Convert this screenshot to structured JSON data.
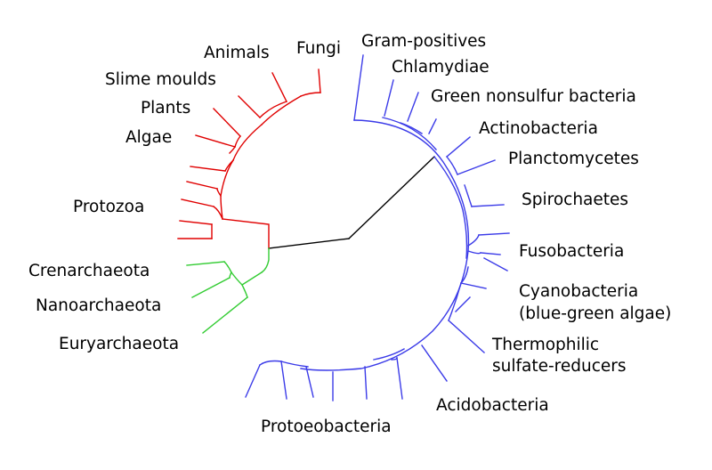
{
  "colors": {
    "eukaryota": "#e00000",
    "archaea": "#33cc33",
    "bacteria": "#3b3be8",
    "root": "#000000"
  },
  "labels": {
    "fungi": "Fungi",
    "animals": "Animals",
    "slime_moulds": "Slime moulds",
    "plants": "Plants",
    "algae": "Algae",
    "protozoa": "Protozoa",
    "crenarchaeota": "Crenarchaeota",
    "nanoarchaeota": "Nanoarchaeota",
    "euryarchaeota": "Euryarchaeota",
    "gram_positives": "Gram-positives",
    "chlamydiae": "Chlamydiae",
    "green_nonsulfur": "Green nonsulfur bacteria",
    "actinobacteria": "Actinobacteria",
    "planctomycetes": "Planctomycetes",
    "spirochaetes": "Spirochaetes",
    "fusobacteria": "Fusobacteria",
    "cyanobacteria_line1": "Cyanobacteria",
    "cyanobacteria_line2": "(blue-green algae)",
    "thermophilic_line1": "Thermophilic",
    "thermophilic_line2": "sulfate-reducers",
    "acidobacteria": "Acidobacteria",
    "proteobacteria": "Protoeobacteria"
  }
}
